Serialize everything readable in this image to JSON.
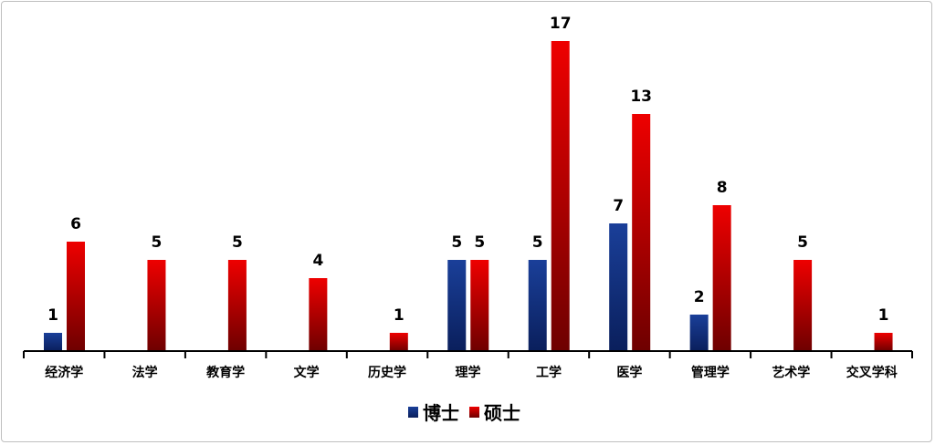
{
  "chart_data": {
    "type": "bar",
    "title": "",
    "xlabel": "",
    "ylabel": "",
    "categories": [
      "经济学",
      "法学",
      "教育学",
      "文学",
      "历史学",
      "理学",
      "工学",
      "医学",
      "管理学",
      "艺术学",
      "交叉学科"
    ],
    "series": [
      {
        "name": "博士",
        "color": "#0d2f80",
        "values": [
          1,
          0,
          0,
          0,
          0,
          5,
          5,
          7,
          2,
          0,
          0
        ]
      },
      {
        "name": "硕士",
        "color": "#d90000",
        "values": [
          6,
          5,
          5,
          4,
          1,
          5,
          17,
          13,
          8,
          5,
          1
        ]
      }
    ],
    "ylim": [
      0,
      19.25
    ],
    "grid": false,
    "y_axis_visible": false,
    "data_labels": true,
    "legend_position": "bottom"
  }
}
